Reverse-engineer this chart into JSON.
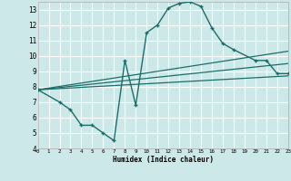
{
  "xlabel": "Humidex (Indice chaleur)",
  "xlim": [
    0,
    23
  ],
  "ylim": [
    4,
    13.5
  ],
  "yticks": [
    4,
    5,
    6,
    7,
    8,
    9,
    10,
    11,
    12,
    13
  ],
  "xticks": [
    0,
    1,
    2,
    3,
    4,
    5,
    6,
    7,
    8,
    9,
    10,
    11,
    12,
    13,
    14,
    15,
    16,
    17,
    18,
    19,
    20,
    21,
    22,
    23
  ],
  "bg_color": "#cde8e8",
  "grid_color": "#b0d8d8",
  "line_color": "#1a6e6a",
  "curve_x": [
    0,
    2,
    3,
    4,
    5,
    6,
    7,
    8,
    9,
    10,
    11,
    12,
    13,
    14,
    15,
    16,
    17,
    18,
    20,
    21,
    22,
    23
  ],
  "curve_y": [
    7.8,
    7.0,
    6.5,
    5.5,
    5.5,
    5.0,
    4.5,
    9.7,
    6.8,
    11.5,
    12.0,
    13.1,
    13.4,
    13.5,
    13.2,
    11.8,
    10.8,
    10.4,
    9.7,
    9.7,
    8.85,
    8.85
  ],
  "straight_lines": [
    {
      "x": [
        0,
        23
      ],
      "y": [
        7.8,
        10.3
      ]
    },
    {
      "x": [
        0,
        23
      ],
      "y": [
        7.8,
        9.5
      ]
    },
    {
      "x": [
        0,
        23
      ],
      "y": [
        7.8,
        8.7
      ]
    }
  ]
}
